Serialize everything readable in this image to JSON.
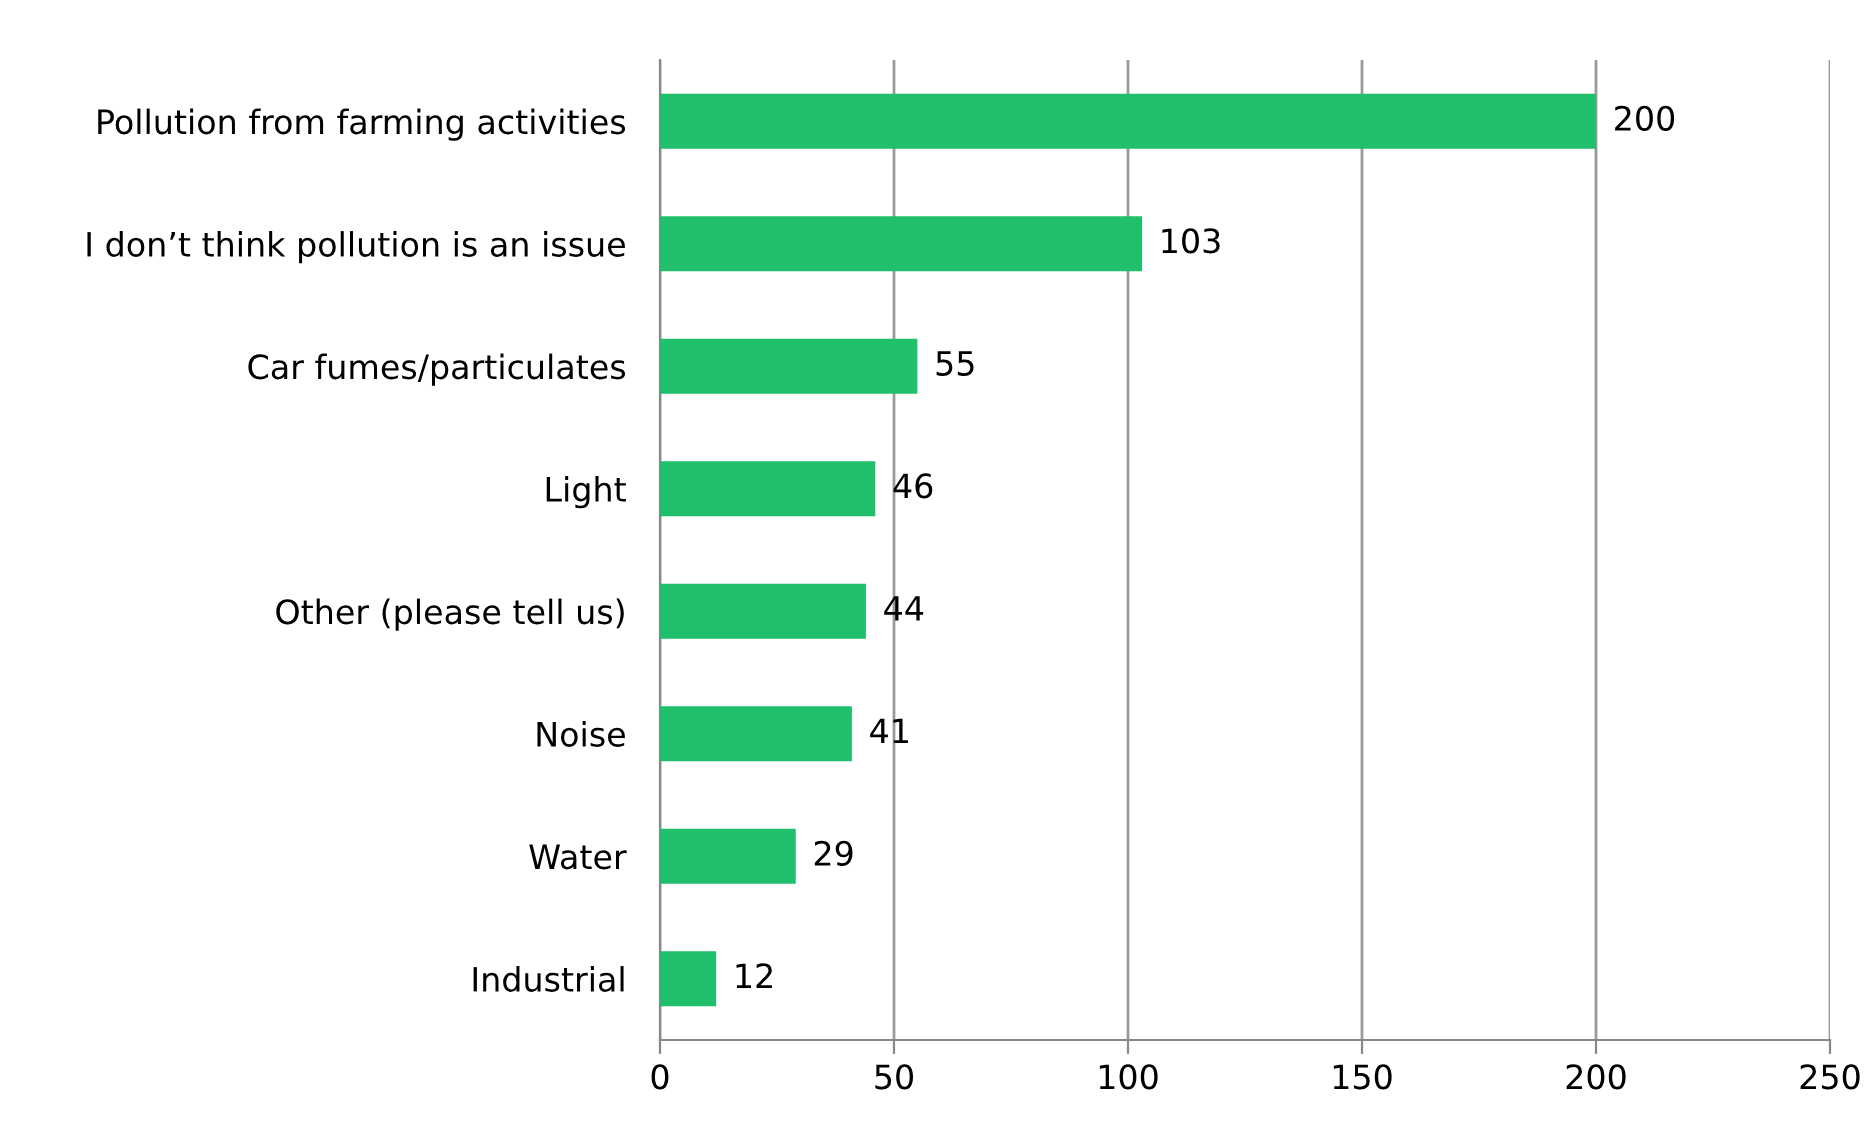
{
  "chart_data": {
    "type": "bar",
    "orientation": "horizontal",
    "categories": [
      "Pollution from farming activities",
      "I don’t think pollution is an issue",
      "Car fumes/particulates",
      "Light",
      "Other (please tell us)",
      "Noise",
      "Water",
      "Industrial"
    ],
    "values": [
      200,
      103,
      55,
      46,
      44,
      41,
      29,
      12
    ],
    "color": "#1fbf6c",
    "xlim": [
      0,
      250
    ],
    "xticks": [
      0,
      50,
      100,
      150,
      200,
      250
    ],
    "grid": "x",
    "data_labels": true
  }
}
